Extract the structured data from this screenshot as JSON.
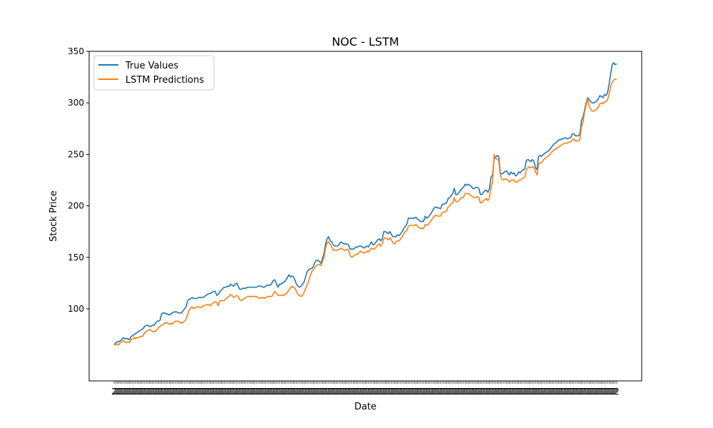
{
  "chart_data": {
    "type": "line",
    "title": "NOC - LSTM",
    "xlabel": "Date",
    "ylabel": "Stock Price",
    "ylim": [
      30,
      350
    ],
    "yticks": [
      100,
      150,
      200,
      250,
      300,
      350
    ],
    "grid": false,
    "legend_position": "top-left",
    "x_tick_labels_note": "densely overlapping date labels, illegible",
    "series": [
      {
        "name": "True Values",
        "color": "#1f77b4",
        "values": [
          65,
          67,
          68,
          68,
          69,
          70,
          72,
          71,
          71,
          71,
          70,
          73,
          74,
          75,
          76,
          77,
          78,
          79,
          80,
          81,
          83,
          84,
          84,
          83,
          83,
          84,
          84,
          86,
          88,
          88,
          89,
          95,
          96,
          96,
          95,
          95,
          94,
          95,
          96,
          97,
          97,
          97,
          96,
          96,
          96,
          98,
          100,
          102,
          108,
          109,
          110,
          111,
          110,
          110,
          110,
          111,
          111,
          111,
          111,
          112,
          113,
          114,
          115,
          115,
          116,
          117,
          117,
          113,
          114,
          117,
          118,
          120,
          121,
          121,
          122,
          122,
          124,
          123,
          122,
          124,
          125,
          122,
          119,
          119,
          120,
          120,
          120,
          121,
          121,
          121,
          121,
          121,
          121,
          121,
          122,
          122,
          122,
          121,
          121,
          122,
          123,
          123,
          123,
          125,
          128,
          128,
          124,
          121,
          124,
          124,
          125,
          126,
          128,
          130,
          133,
          131,
          132,
          131,
          128,
          124,
          122,
          121,
          122,
          124,
          126,
          131,
          136,
          138,
          139,
          139,
          141,
          145,
          147,
          147,
          146,
          144,
          149,
          154,
          163,
          168,
          170,
          166,
          165,
          162,
          161,
          161,
          161,
          163,
          165,
          164,
          163,
          163,
          163,
          162,
          158,
          158,
          158,
          159,
          160,
          160,
          161,
          161,
          160,
          159,
          160,
          161,
          160,
          163,
          165,
          162,
          163,
          165,
          167,
          168,
          166,
          168,
          175,
          175,
          174,
          173,
          175,
          172,
          170,
          170,
          170,
          172,
          171,
          173,
          175,
          178,
          180,
          182,
          188,
          188,
          188,
          188,
          188,
          189,
          187,
          186,
          185,
          185,
          185,
          190,
          188,
          189,
          191,
          193,
          196,
          198,
          199,
          198,
          198,
          197,
          201,
          202,
          202,
          203,
          207,
          208,
          210,
          212,
          217,
          211,
          211,
          213,
          215,
          217,
          218,
          221,
          220,
          221,
          220,
          219,
          217,
          217,
          218,
          218,
          217,
          211,
          211,
          213,
          215,
          215,
          213,
          217,
          228,
          230,
          246,
          247,
          249,
          248,
          232,
          231,
          232,
          233,
          234,
          232,
          230,
          233,
          231,
          232,
          229,
          230,
          233,
          232,
          234,
          235,
          236,
          244,
          245,
          244,
          243,
          245,
          243,
          237,
          235,
          248,
          249,
          248,
          250,
          251,
          252,
          253,
          254,
          256,
          258,
          260,
          261,
          262,
          264,
          264,
          265,
          265,
          266,
          266,
          265,
          266,
          266,
          270,
          270,
          268,
          268,
          268,
          270,
          283,
          286,
          293,
          300,
          305,
          303,
          301,
          300,
          300,
          301,
          302,
          304,
          307,
          306,
          305,
          308,
          307,
          310,
          318,
          328,
          337,
          339,
          337,
          338
        ],
        "x_start": 0
      },
      {
        "name": "LSTM Predictions",
        "color": "#ff7f0e",
        "values": [
          65,
          65,
          66,
          65,
          67,
          68,
          69,
          68,
          67,
          68,
          67,
          70,
          71,
          72,
          71,
          72,
          72,
          73,
          73,
          74,
          77,
          78,
          79,
          80,
          79,
          78,
          78,
          78,
          80,
          82,
          83,
          84,
          85,
          86,
          87,
          86,
          85,
          86,
          85,
          87,
          88,
          88,
          88,
          87,
          86,
          87,
          88,
          90,
          94,
          99,
          101,
          102,
          100,
          101,
          102,
          102,
          101,
          101,
          103,
          103,
          104,
          104,
          104,
          103,
          105,
          106,
          107,
          106,
          103,
          108,
          108,
          108,
          108,
          110,
          111,
          112,
          114,
          113,
          111,
          112,
          113,
          112,
          109,
          108,
          109,
          110,
          111,
          112,
          112,
          112,
          112,
          112,
          112,
          112,
          111,
          110,
          111,
          111,
          110,
          111,
          112,
          112,
          112,
          112,
          115,
          117,
          115,
          113,
          113,
          113,
          113,
          114,
          114,
          116,
          118,
          120,
          122,
          121,
          120,
          117,
          114,
          113,
          112,
          113,
          116,
          120,
          123,
          127,
          132,
          136,
          138,
          140,
          142,
          143,
          143,
          142,
          146,
          150,
          159,
          164,
          165,
          163,
          160,
          157,
          157,
          157,
          157,
          158,
          159,
          158,
          157,
          157,
          158,
          157,
          152,
          150,
          151,
          152,
          153,
          153,
          155,
          156,
          155,
          154,
          155,
          156,
          155,
          157,
          159,
          158,
          158,
          160,
          162,
          163,
          161,
          163,
          168,
          169,
          168,
          167,
          169,
          167,
          164,
          163,
          165,
          166,
          166,
          168,
          170,
          173,
          175,
          176,
          180,
          181,
          181,
          181,
          181,
          182,
          180,
          179,
          178,
          178,
          178,
          182,
          181,
          182,
          184,
          186,
          188,
          190,
          191,
          190,
          190,
          190,
          193,
          194,
          194,
          195,
          199,
          200,
          202,
          203,
          208,
          204,
          204,
          205,
          207,
          208,
          208,
          212,
          212,
          212,
          211,
          210,
          209,
          208,
          208,
          209,
          208,
          203,
          203,
          205,
          206,
          207,
          205,
          208,
          218,
          223,
          250,
          246,
          245,
          244,
          230,
          226,
          225,
          226,
          226,
          225,
          223,
          225,
          225,
          225,
          223,
          223,
          225,
          225,
          226,
          227,
          228,
          235,
          237,
          238,
          237,
          238,
          237,
          233,
          230,
          240,
          242,
          242,
          244,
          246,
          247,
          248,
          249,
          251,
          253,
          254,
          255,
          256,
          257,
          258,
          259,
          260,
          261,
          261,
          261,
          262,
          262,
          264,
          265,
          263,
          263,
          263,
          265,
          277,
          281,
          291,
          298,
          304,
          297,
          294,
          292,
          292,
          293,
          294,
          296,
          299,
          300,
          299,
          301,
          301,
          303,
          308,
          316,
          320,
          322,
          323,
          323
        ],
        "x_start": 0
      }
    ]
  }
}
